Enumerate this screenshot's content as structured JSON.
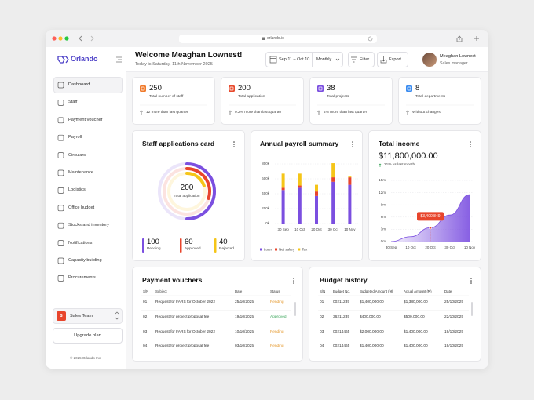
{
  "browser": {
    "url": "orlando.io"
  },
  "sidebar": {
    "brand": "Orlando",
    "nav": [
      "Dashboard",
      "Staff",
      "Payment voucher",
      "Payroll",
      "Circulars",
      "Maintenance",
      "Logistics",
      "Office budget",
      "Stocks and inventory",
      "Notifications",
      "Capacity building",
      "Procurements"
    ],
    "team": {
      "badge": "S",
      "name": "Sales Team"
    },
    "upgrade": "Upgrade plan",
    "footer": "© 2025 Orlando Inc."
  },
  "header": {
    "title": "Welcome Meaghan Lownest!",
    "subtitle": "Today is Saturday, 11th November 2025",
    "date_range": "Sep 11 – Oct 10",
    "period": "Monthly",
    "filter": "Filter",
    "export": "Export",
    "user": {
      "name": "Meaghan Lownest",
      "role": "Sales manager"
    }
  },
  "stats": [
    {
      "value": 250,
      "label": "Total number of staff",
      "change": "12 more than last quarter",
      "color": "#f07a2b"
    },
    {
      "value": 200,
      "label": "Total application",
      "change": "0.2% more than last quarter",
      "color": "#e84a2c"
    },
    {
      "value": 38,
      "label": "Total projects",
      "change": "4% more than last quarter",
      "color": "#7b4fe0"
    },
    {
      "value": 8,
      "label": "Total departments",
      "change": "Without changes",
      "color": "#3b8cf0"
    }
  ],
  "applications": {
    "type": "rings",
    "title": "Staff applications card",
    "total": 200,
    "total_label": "Total application",
    "series": [
      {
        "name": "Pending",
        "value": 100,
        "color": "#7b4fe0"
      },
      {
        "name": "Approved",
        "value": 60,
        "color": "#e8452c"
      },
      {
        "name": "Rejected",
        "value": 40,
        "color": "#f5c518"
      }
    ]
  },
  "payroll": {
    "type": "bar",
    "stacked": true,
    "title": "Annual payroll summary",
    "categories": [
      "30 Sep",
      "10 Oct",
      "20 Oct",
      "30 Oct",
      "10 Nov"
    ],
    "series": [
      {
        "name": "Loan",
        "color": "#7b4fe0",
        "values": [
          450000,
          480000,
          370000,
          560000,
          520000
        ]
      },
      {
        "name": "Net salary",
        "color": "#e8452c",
        "values": [
          30000,
          30000,
          60000,
          60000,
          100000
        ]
      },
      {
        "name": "Tax",
        "color": "#f5c518",
        "values": [
          190000,
          160000,
          90000,
          190000,
          10000
        ]
      }
    ],
    "ylim": [
      0,
      800000
    ],
    "yticks": [
      {
        "value": 0,
        "label": "0k"
      },
      {
        "value": 200000,
        "label": "200k"
      },
      {
        "value": 400000,
        "label": "400k"
      },
      {
        "value": 600000,
        "label": "600k"
      },
      {
        "value": 800000,
        "label": "800k"
      }
    ],
    "grid": true
  },
  "income": {
    "type": "area",
    "title": "Total income",
    "amount": "$11,800,000.00",
    "change": "21% vs last month",
    "categories": [
      "30 Sep",
      "10 Oct",
      "20 Oct",
      "30 Oct",
      "10 Nov"
    ],
    "values": [
      0,
      1200000,
      3400849,
      6500000,
      11500000
    ],
    "value_labels": [
      null,
      null,
      "$3,400,849",
      null,
      null
    ],
    "color": "#7b4fe0",
    "ylim": [
      0,
      15000000
    ],
    "yticks": [
      {
        "value": 0,
        "label": "0m"
      },
      {
        "value": 3000000,
        "label": "3m"
      },
      {
        "value": 6000000,
        "label": "6m"
      },
      {
        "value": 9000000,
        "label": "9m"
      },
      {
        "value": 12000000,
        "label": "12m"
      },
      {
        "value": 15000000,
        "label": "15m"
      }
    ],
    "grid": true
  },
  "payment_vouchers": {
    "title": "Payment vouchers",
    "columns": [
      "S/N",
      "Subject",
      "Date",
      "Status"
    ],
    "rows": [
      [
        "01",
        "Request for FARS for October 2022",
        "25/10/2025",
        "Pending"
      ],
      [
        "02",
        "Request for project proposal fee",
        "19/10/2025",
        "Approved"
      ],
      [
        "03",
        "Request for FARS for October 2022",
        "10/10/2025",
        "Pending"
      ],
      [
        "04",
        "Request for project proposal fee",
        "03/10/2025",
        "Pending"
      ]
    ],
    "status_colors": [
      "#e59a2f",
      "#3aa55a",
      "#e59a2f",
      "#e59a2f"
    ]
  },
  "budget_history": {
    "title": "Budget history",
    "columns": [
      "S/N",
      "Budget No.",
      "Budgeted Amount (₦)",
      "Actual Amount (₦)",
      "Date"
    ],
    "rows": [
      [
        "01",
        "00211235",
        "$1,400,000.00",
        "$1,380,000.00",
        "25/10/2025"
      ],
      [
        "02",
        "36211235",
        "$400,000.00",
        "$500,000.00",
        "22/10/2025"
      ],
      [
        "03",
        "00214465",
        "$2,000,000.00",
        "$1,400,000.00",
        "19/10/2025"
      ],
      [
        "04",
        "00214465",
        "$1,400,000.00",
        "$1,400,000.00",
        "19/10/2025"
      ]
    ]
  }
}
